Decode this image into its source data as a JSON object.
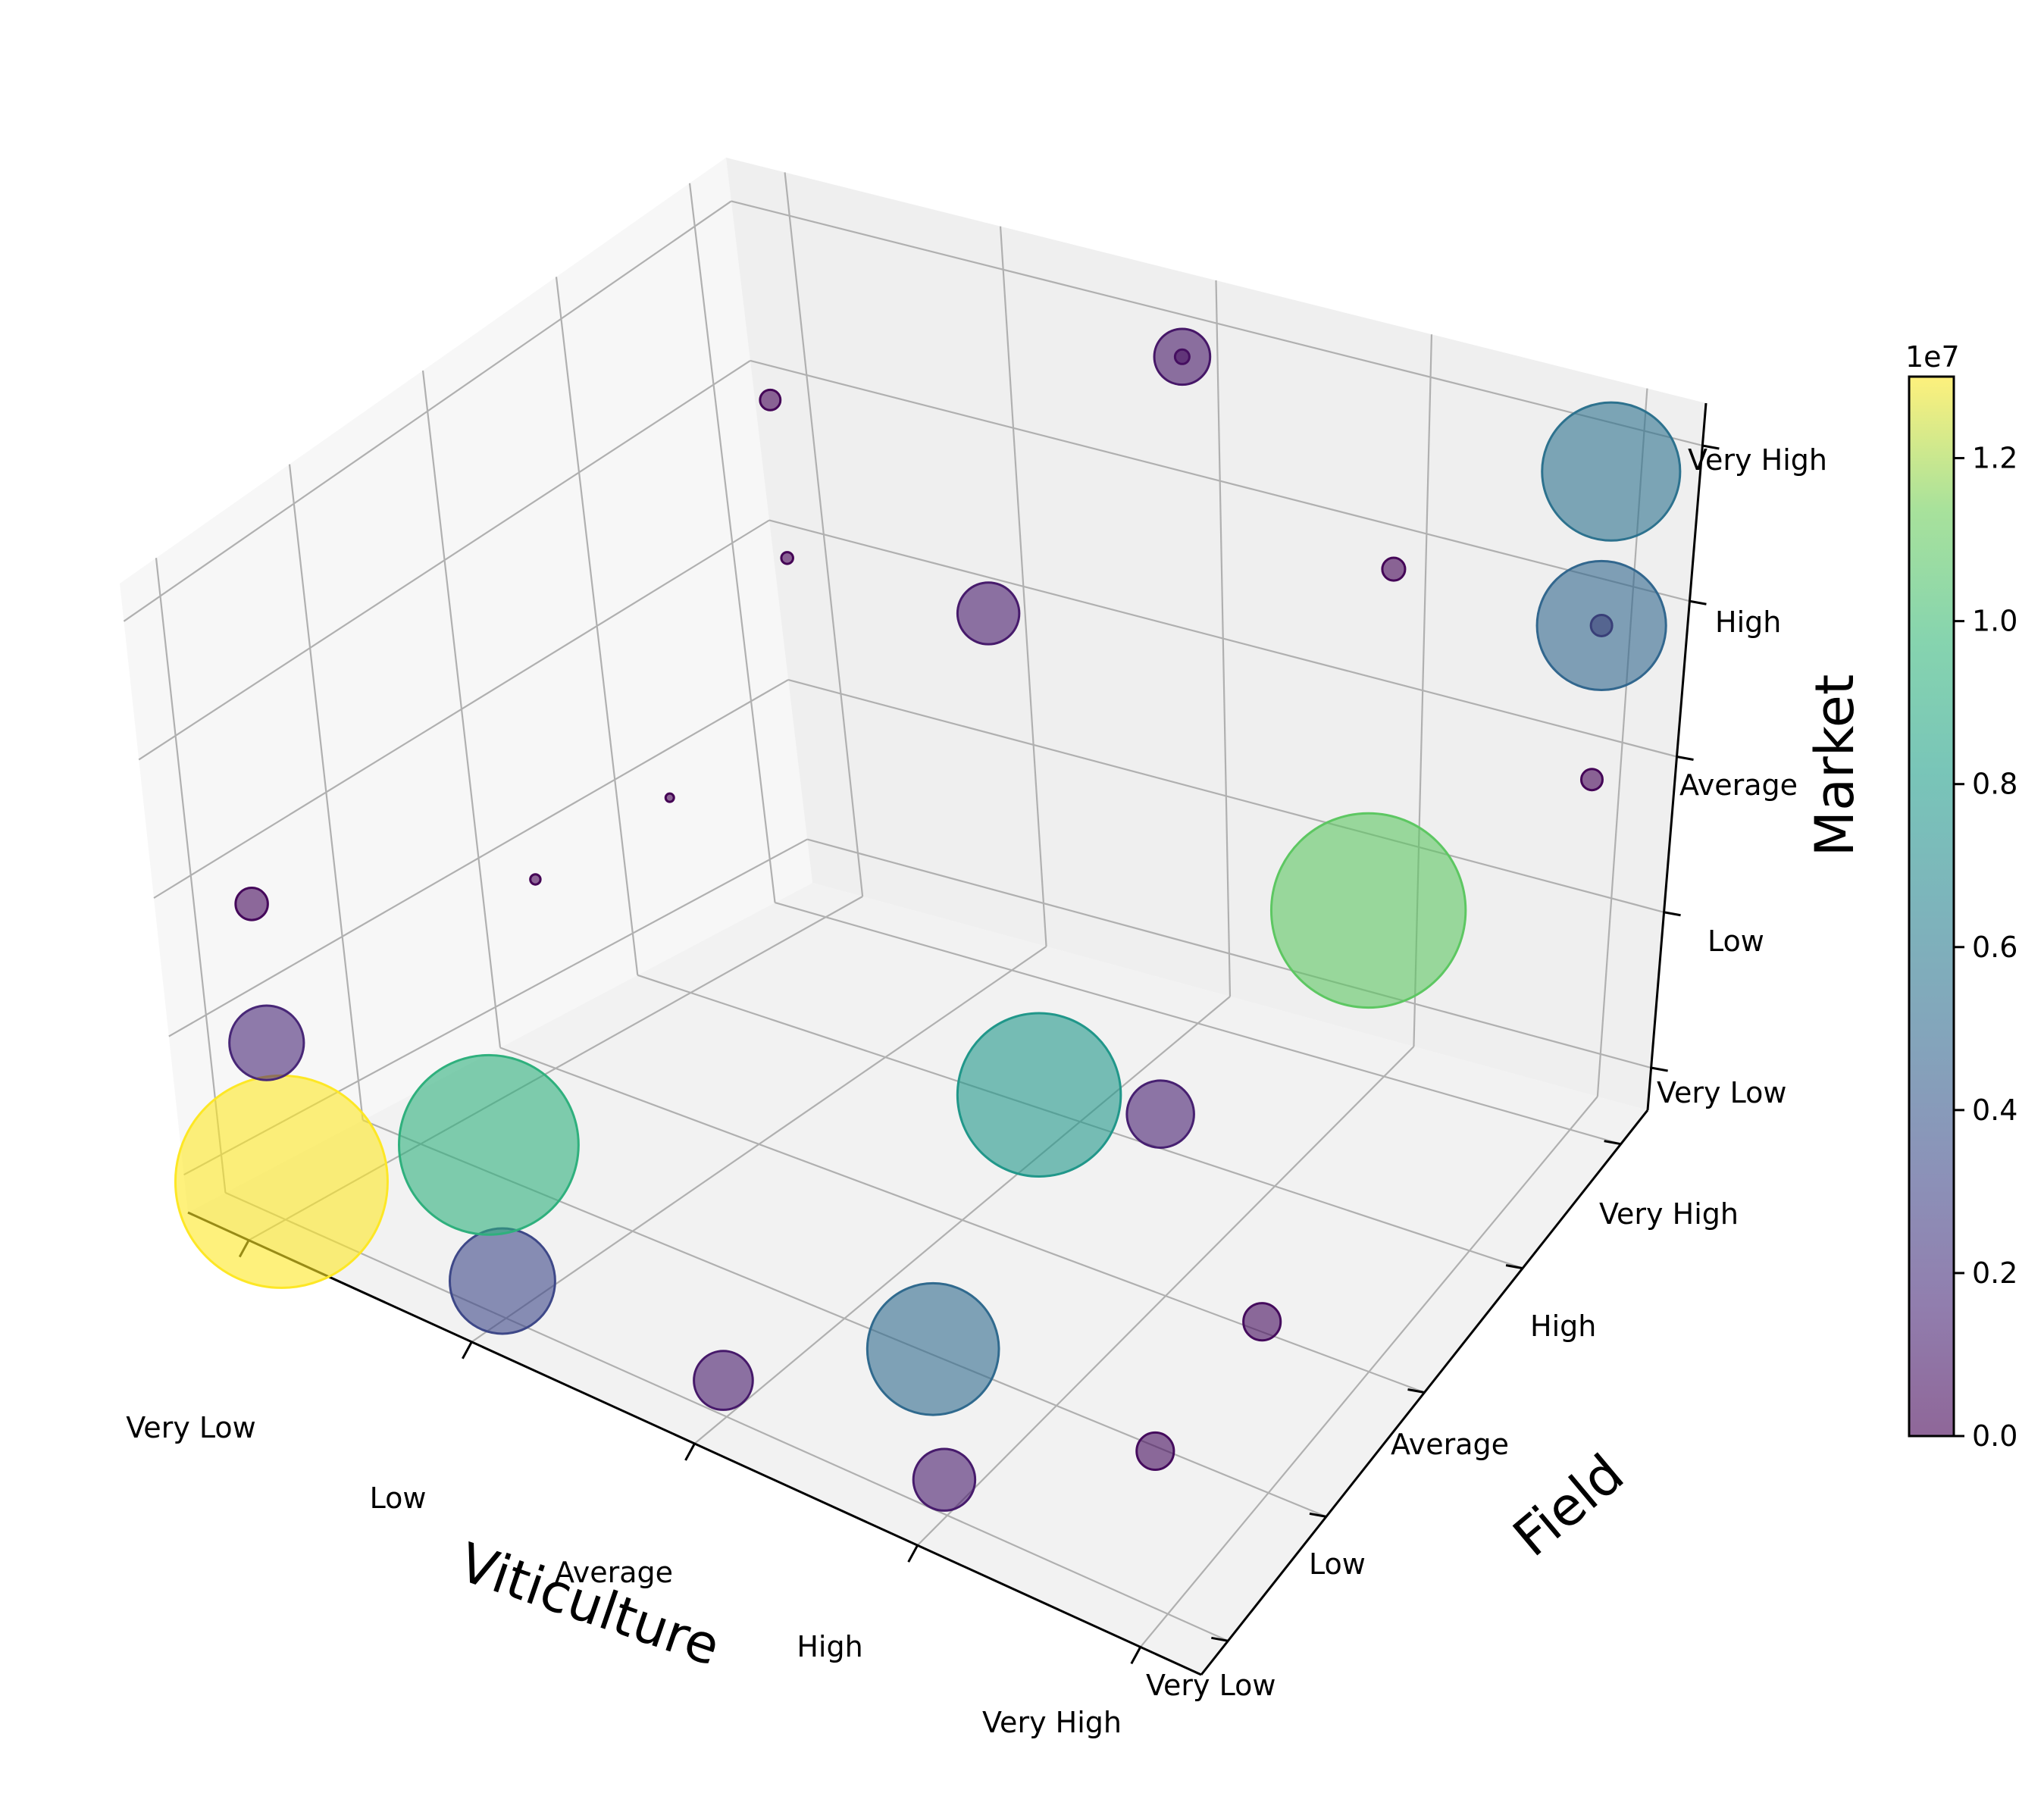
{
  "chart_data": {
    "type": "scatter",
    "subtype": "3d-bubble",
    "title": "",
    "xlabel": "Viticulture",
    "ylabel": "Field",
    "zlabel": "Market",
    "x_ticks": [
      "Very Low",
      "Low",
      "Average",
      "High",
      "Very High"
    ],
    "y_ticks": [
      "Very Low",
      "Low",
      "Average",
      "High",
      "Very High"
    ],
    "z_ticks": [
      "Very Low",
      "Low",
      "Average",
      "High",
      "Very High"
    ],
    "colormap": "viridis",
    "alpha": 0.6,
    "colorbar": {
      "offset_text": "1e7",
      "ticks": [
        "0.0",
        "0.2",
        "0.4",
        "0.6",
        "0.8",
        "1.0",
        "1.2"
      ],
      "tick_values": [
        0,
        2000000,
        4000000,
        6000000,
        8000000,
        10000000,
        12000000
      ],
      "range": [
        0,
        13000000
      ]
    },
    "points": [
      {
        "viticulture": "Very Low",
        "field": "Very Low",
        "market": "Very Low",
        "value": 13000000
      },
      {
        "viticulture": "Low",
        "field": "Very Low",
        "market": "Very Low",
        "value": 3200000
      },
      {
        "viticulture": "Very Low",
        "field": "Very Low",
        "market": "Low",
        "value": 1600000
      },
      {
        "viticulture": "Very Low",
        "field": "Very Low",
        "market": "Average",
        "value": 300000
      },
      {
        "viticulture": "Average",
        "field": "Very Low",
        "market": "Very Low",
        "value": 1000000
      },
      {
        "viticulture": "Very Low",
        "field": "Average",
        "market": "Low",
        "value": 30000
      },
      {
        "viticulture": "Very Low",
        "field": "High",
        "market": "Low",
        "value": 20000
      },
      {
        "viticulture": "Very Low",
        "field": "Very High",
        "market": "Average",
        "value": 40000
      },
      {
        "viticulture": "Very Low",
        "field": "Very High",
        "market": "High",
        "value": 120000
      },
      {
        "viticulture": "Low",
        "field": "Very Low",
        "market": "Low",
        "value": 9300000
      },
      {
        "viticulture": "Low",
        "field": "Very High",
        "market": "Average",
        "value": 1100000
      },
      {
        "viticulture": "High",
        "field": "Very Low",
        "market": "Very Low",
        "value": 1100000
      },
      {
        "viticulture": "High",
        "field": "Very Low",
        "market": "Low",
        "value": 5000000
      },
      {
        "viticulture": "High",
        "field": "Average",
        "market": "Low",
        "value": 1300000
      },
      {
        "viticulture": "High",
        "field": "Low",
        "market": "Average",
        "value": 7700000
      },
      {
        "viticulture": "Average",
        "field": "Very High",
        "market": "Very High",
        "value": 60000
      },
      {
        "viticulture": "Average",
        "field": "Very High",
        "market": "Very High",
        "value": 900000
      },
      {
        "viticulture": "Very High",
        "field": "Low",
        "market": "Low",
        "value": 400000
      },
      {
        "viticulture": "Very High",
        "field": "Very Low",
        "market": "Low",
        "value": 400000
      },
      {
        "viticulture": "High",
        "field": "Very High",
        "market": "High",
        "value": 150000
      },
      {
        "viticulture": "Very High",
        "field": "Average",
        "market": "High",
        "value": 10900000
      },
      {
        "viticulture": "Very High",
        "field": "Very High",
        "market": "High",
        "value": 130000
      },
      {
        "viticulture": "Very High",
        "field": "Very High",
        "market": "Average",
        "value": 130000
      },
      {
        "viticulture": "Very High",
        "field": "Very High",
        "market": "Very High",
        "value": 5500000
      },
      {
        "viticulture": "Very High",
        "field": "Very High",
        "market": "High",
        "value": 4800000
      }
    ]
  }
}
